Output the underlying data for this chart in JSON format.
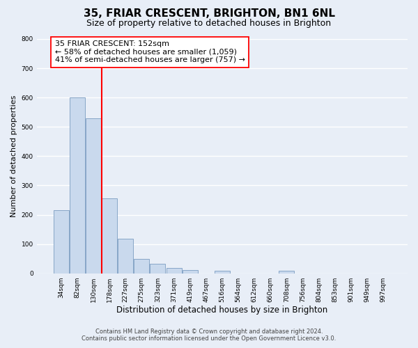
{
  "title": "35, FRIAR CRESCENT, BRIGHTON, BN1 6NL",
  "subtitle": "Size of property relative to detached houses in Brighton",
  "xlabel": "Distribution of detached houses by size in Brighton",
  "ylabel": "Number of detached properties",
  "bin_labels": [
    "34sqm",
    "82sqm",
    "130sqm",
    "178sqm",
    "227sqm",
    "275sqm",
    "323sqm",
    "371sqm",
    "419sqm",
    "467sqm",
    "516sqm",
    "564sqm",
    "612sqm",
    "660sqm",
    "708sqm",
    "756sqm",
    "804sqm",
    "853sqm",
    "901sqm",
    "949sqm",
    "997sqm"
  ],
  "bar_heights": [
    215,
    600,
    530,
    255,
    118,
    50,
    33,
    18,
    10,
    0,
    8,
    0,
    0,
    0,
    8,
    0,
    0,
    0,
    0,
    0,
    0
  ],
  "bar_color": "#c9d9ed",
  "bar_edge_color": "#7a9cc0",
  "red_line_x": 2.5,
  "annotation_line1": "35 FRIAR CRESCENT: 152sqm",
  "annotation_line2": "← 58% of detached houses are smaller (1,059)",
  "annotation_line3": "41% of semi-detached houses are larger (757) →",
  "ylim": [
    0,
    800
  ],
  "yticks": [
    0,
    100,
    200,
    300,
    400,
    500,
    600,
    700,
    800
  ],
  "footer_line1": "Contains HM Land Registry data © Crown copyright and database right 2024.",
  "footer_line2": "Contains public sector information licensed under the Open Government Licence v3.0.",
  "fig_bg_color": "#e8eef7",
  "plot_bg_color": "#e8eef7",
  "grid_color": "#ffffff",
  "title_fontsize": 11,
  "subtitle_fontsize": 9,
  "ylabel_fontsize": 8,
  "xlabel_fontsize": 8.5,
  "tick_fontsize": 6.5,
  "footer_fontsize": 6.0
}
